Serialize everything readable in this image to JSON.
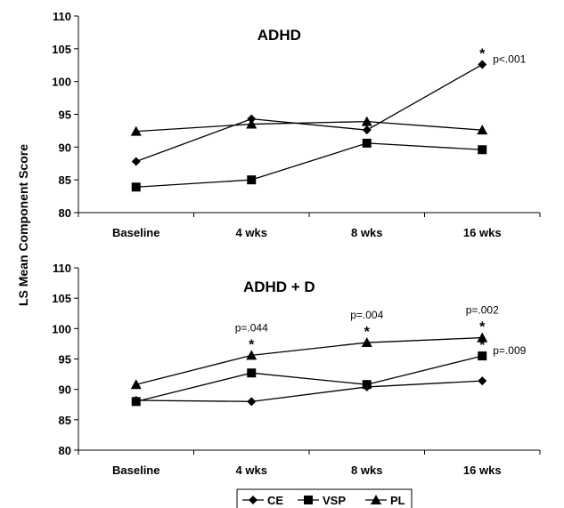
{
  "ylabel": "LS Mean Component Score",
  "legend": {
    "items": [
      {
        "name": "CE",
        "marker": "diamond"
      },
      {
        "name": "VSP",
        "marker": "square"
      },
      {
        "name": "PL",
        "marker": "triangle"
      }
    ]
  },
  "chart_data": [
    {
      "type": "line",
      "title": "ADHD",
      "categories": [
        "Baseline",
        "4 wks",
        "8 wks",
        "16 wks"
      ],
      "ylim": [
        80,
        110
      ],
      "yticks": [
        80,
        85,
        90,
        95,
        100,
        105,
        110
      ],
      "series": [
        {
          "name": "CE",
          "values": [
            87.8,
            94.3,
            92.6,
            102.6
          ]
        },
        {
          "name": "VSP",
          "values": [
            83.9,
            85.0,
            90.6,
            89.6
          ]
        },
        {
          "name": "PL",
          "values": [
            92.4,
            93.5,
            93.9,
            92.6
          ]
        }
      ],
      "annotations": [
        {
          "series": "CE",
          "category": "16 wks",
          "star": "*",
          "text": "p<.001",
          "text_pos": "right"
        }
      ]
    },
    {
      "type": "line",
      "title": "ADHD + D",
      "categories": [
        "Baseline",
        "4 wks",
        "8 wks",
        "16 wks"
      ],
      "ylim": [
        80,
        110
      ],
      "yticks": [
        80,
        85,
        90,
        95,
        100,
        105,
        110
      ],
      "series": [
        {
          "name": "CE",
          "values": [
            88.2,
            88.0,
            90.4,
            91.4
          ]
        },
        {
          "name": "VSP",
          "values": [
            88.0,
            92.7,
            90.8,
            95.5
          ]
        },
        {
          "name": "PL",
          "values": [
            90.8,
            95.6,
            97.7,
            98.5
          ]
        }
      ],
      "annotations": [
        {
          "series": "PL",
          "category": "4 wks",
          "star": "*",
          "text": "p=.044",
          "text_pos": "above"
        },
        {
          "series": "PL",
          "category": "8 wks",
          "star": "*",
          "text": "p=.004",
          "text_pos": "above"
        },
        {
          "series": "PL",
          "category": "16 wks",
          "star": "*",
          "text": "p=.002",
          "text_pos": "above"
        },
        {
          "series": "VSP",
          "category": "16 wks",
          "star": "*",
          "text": "p=.009",
          "text_pos": "right"
        }
      ]
    }
  ]
}
